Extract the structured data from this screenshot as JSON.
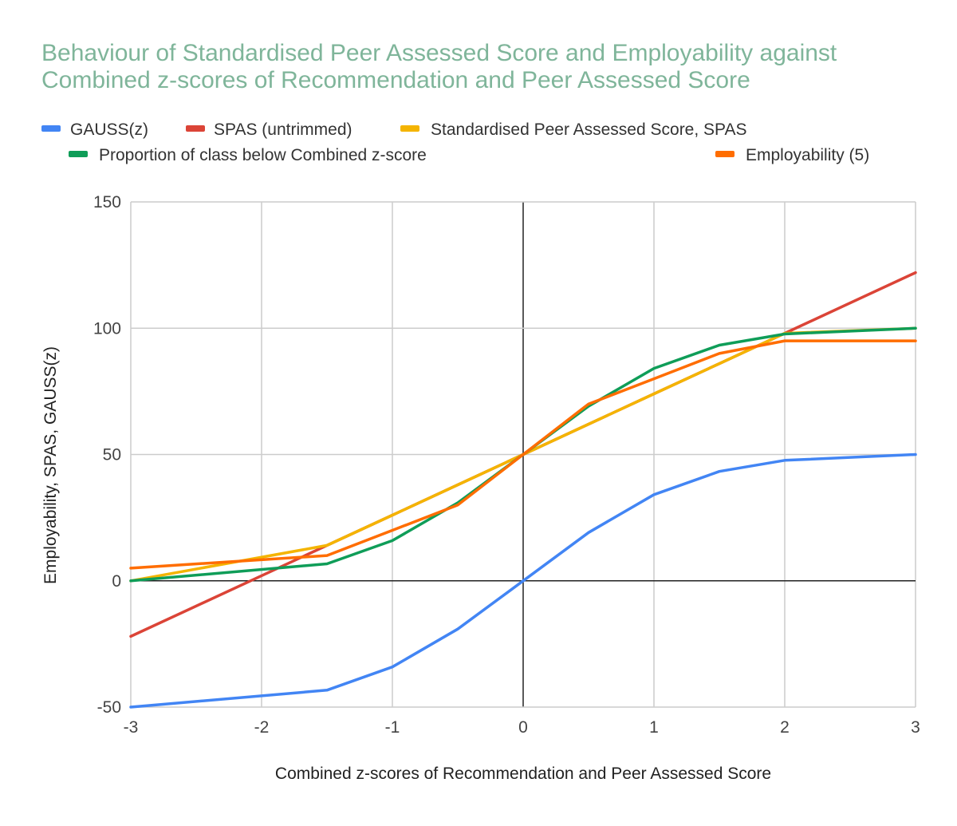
{
  "chart_data": {
    "type": "line",
    "title": "Behaviour of Standardised Peer Assessed Score and Employability against Combined z-scores of Recommendation and Peer Assessed Score",
    "title_lines": [
      "Behaviour of Standardised Peer Assessed Score and Employability against",
      "Combined z-scores of Recommendation and Peer Assessed Score"
    ],
    "xlabel": "Combined z-scores of Recommendation and Peer Assessed Score",
    "ylabel": "Employability, SPAS, GAUSS(z)",
    "xlim": [
      -3,
      3
    ],
    "ylim": [
      -50,
      150
    ],
    "x_ticks": [
      -3,
      -2,
      -1,
      0,
      1,
      2,
      3
    ],
    "y_ticks": [
      -50,
      0,
      50,
      100,
      150
    ],
    "x_tick_labels": [
      "-3",
      "-2",
      "-1",
      "0",
      "1",
      "2",
      "3"
    ],
    "y_tick_labels": [
      "-50",
      "0",
      "50",
      "100",
      "150"
    ],
    "grid": true,
    "legend_position": "top",
    "x": [
      -3,
      -1.5,
      -1,
      -0.5,
      0,
      0.5,
      1,
      1.5,
      2,
      3
    ],
    "series": [
      {
        "name": "GAUSS(z)",
        "color": "#4285f4",
        "values": [
          -50,
          -43.3,
          -34.1,
          -19.1,
          0,
          19.1,
          34.1,
          43.3,
          47.7,
          50
        ]
      },
      {
        "name": "SPAS (untrimmed)",
        "color": "#db4437",
        "values": [
          -22,
          14,
          26,
          38,
          50,
          62,
          74,
          86,
          98,
          122
        ]
      },
      {
        "name": "Standardised Peer Assessed Score, SPAS",
        "color": "#f4b400",
        "values": [
          0,
          14,
          26,
          38,
          50,
          62,
          74,
          86,
          98,
          100
        ]
      },
      {
        "name": "Proportion of class below Combined z-score",
        "color": "#0f9d58",
        "values": [
          0,
          6.7,
          15.9,
          30.9,
          50,
          69.1,
          84.1,
          93.3,
          97.7,
          100
        ]
      },
      {
        "name": "Employability (5)",
        "color": "#ff6d00",
        "values": [
          5,
          10,
          20,
          30,
          50,
          70,
          80,
          90,
          95,
          95
        ]
      }
    ]
  }
}
